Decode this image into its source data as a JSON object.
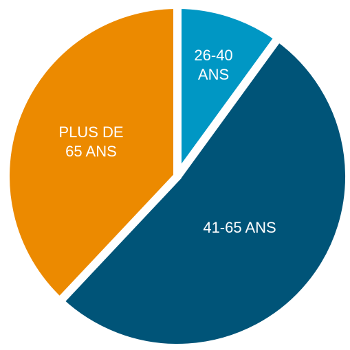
{
  "chart_data": {
    "type": "pie",
    "categories": [
      "26-40 ANS",
      "41-65 ANS",
      "PLUS DE 65 ANS"
    ],
    "values": [
      10,
      52,
      38
    ],
    "colors": [
      "#0097c4",
      "#005478",
      "#ec8a00"
    ]
  }
}
